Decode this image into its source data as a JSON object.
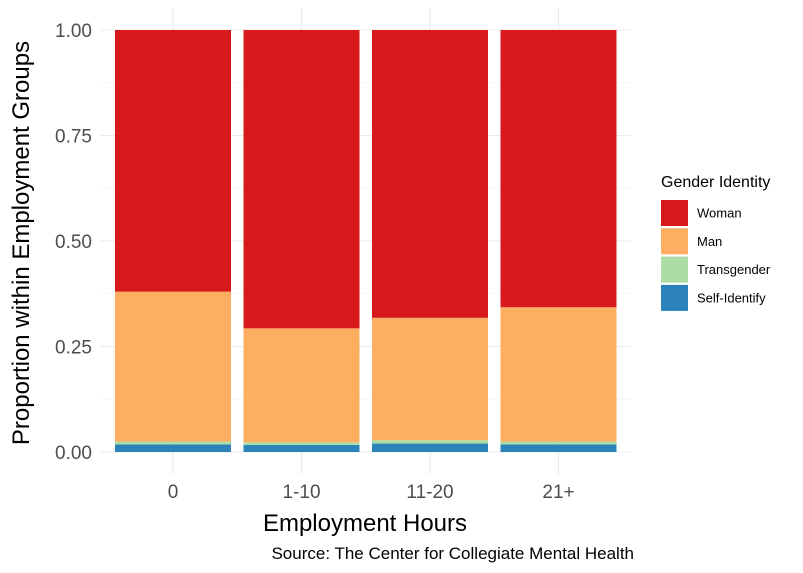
{
  "chart_data": {
    "type": "bar",
    "stacked": true,
    "title": "",
    "xlabel": "Employment Hours",
    "ylabel": "Proportion within Employment Groups",
    "caption": "Source: The Center for Collegiate Mental Health",
    "categories": [
      "0",
      "1-10",
      "11-20",
      "21+"
    ],
    "ylim": [
      0,
      1
    ],
    "yticks": [
      0,
      0.25,
      0.5,
      0.75,
      1
    ],
    "ytick_labels": [
      "0.00",
      "0.25",
      "0.50",
      "0.75",
      "1.00"
    ],
    "grid": true,
    "legend_position": "right",
    "legend_title": "Gender Identity",
    "series": [
      {
        "name": "Woman",
        "color": "#d7191c",
        "values": [
          0.62,
          0.707,
          0.682,
          0.657
        ]
      },
      {
        "name": "Man",
        "color": "#fdae61",
        "values": [
          0.355,
          0.27,
          0.29,
          0.318
        ]
      },
      {
        "name": "Transgender",
        "color": "#abdda4",
        "values": [
          0.007,
          0.006,
          0.008,
          0.007
        ]
      },
      {
        "name": "Self-Identify",
        "color": "#2b83ba",
        "values": [
          0.018,
          0.017,
          0.02,
          0.018
        ]
      }
    ]
  }
}
